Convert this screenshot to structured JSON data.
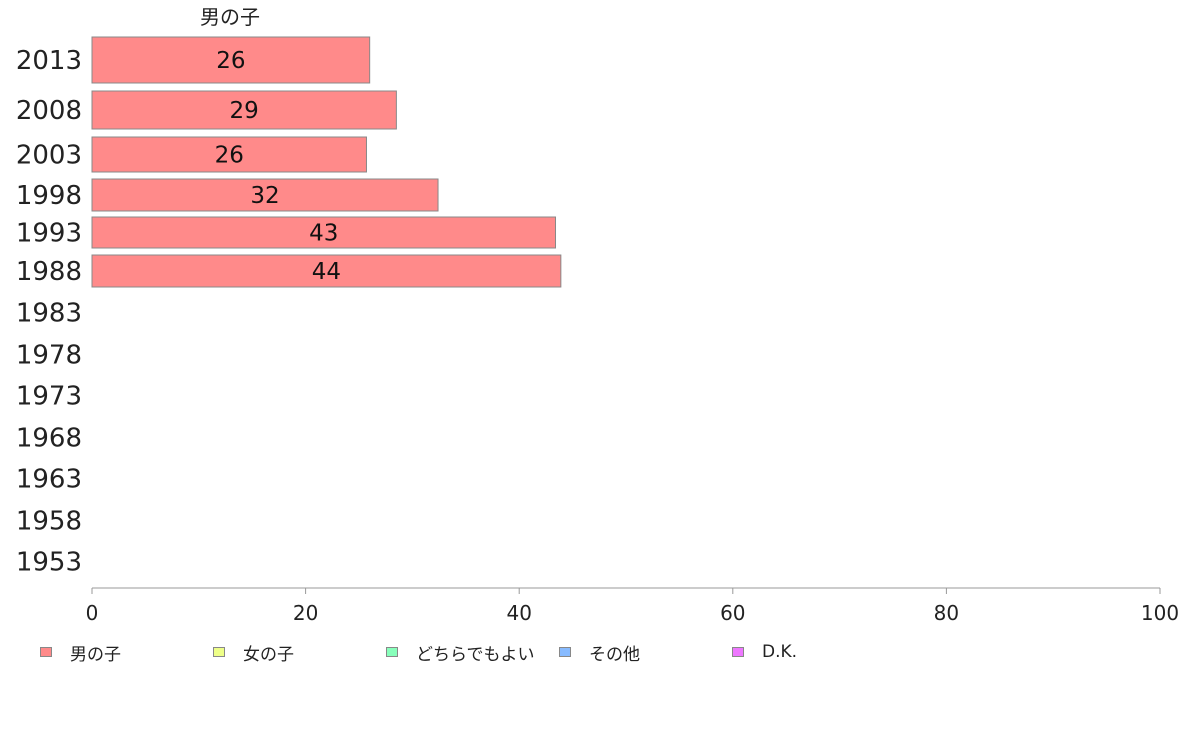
{
  "chart_data": {
    "type": "bar",
    "orientation": "horizontal",
    "panel_label": "男の子",
    "categories": [
      "2013",
      "2008",
      "2003",
      "1998",
      "1993",
      "1988",
      "1983",
      "1978",
      "1973",
      "1968",
      "1963",
      "1958",
      "1953"
    ],
    "series": [
      {
        "name": "男の子",
        "color": "#ff8a8a",
        "values": [
          26,
          29,
          26,
          32,
          43,
          44,
          null,
          null,
          null,
          null,
          null,
          null,
          null
        ],
        "display_values": [
          26,
          28.5,
          25.7,
          32.4,
          43.4,
          43.9,
          null,
          null,
          null,
          null,
          null,
          null,
          null
        ]
      }
    ],
    "xlim": [
      0,
      100
    ],
    "xticks": [
      "0",
      "20",
      "40",
      "60",
      "80",
      "100"
    ],
    "legend": {
      "position": "bottom",
      "items": [
        {
          "label": "男の子",
          "color": "#ff8a8a"
        },
        {
          "label": "女の子",
          "color": "#eeff88"
        },
        {
          "label": "どちらでもよい",
          "color": "#88ffbb"
        },
        {
          "label": "その他",
          "color": "#88bbff"
        },
        {
          "label": "D.K.",
          "color": "#ee77ff"
        }
      ]
    },
    "grid": false
  }
}
